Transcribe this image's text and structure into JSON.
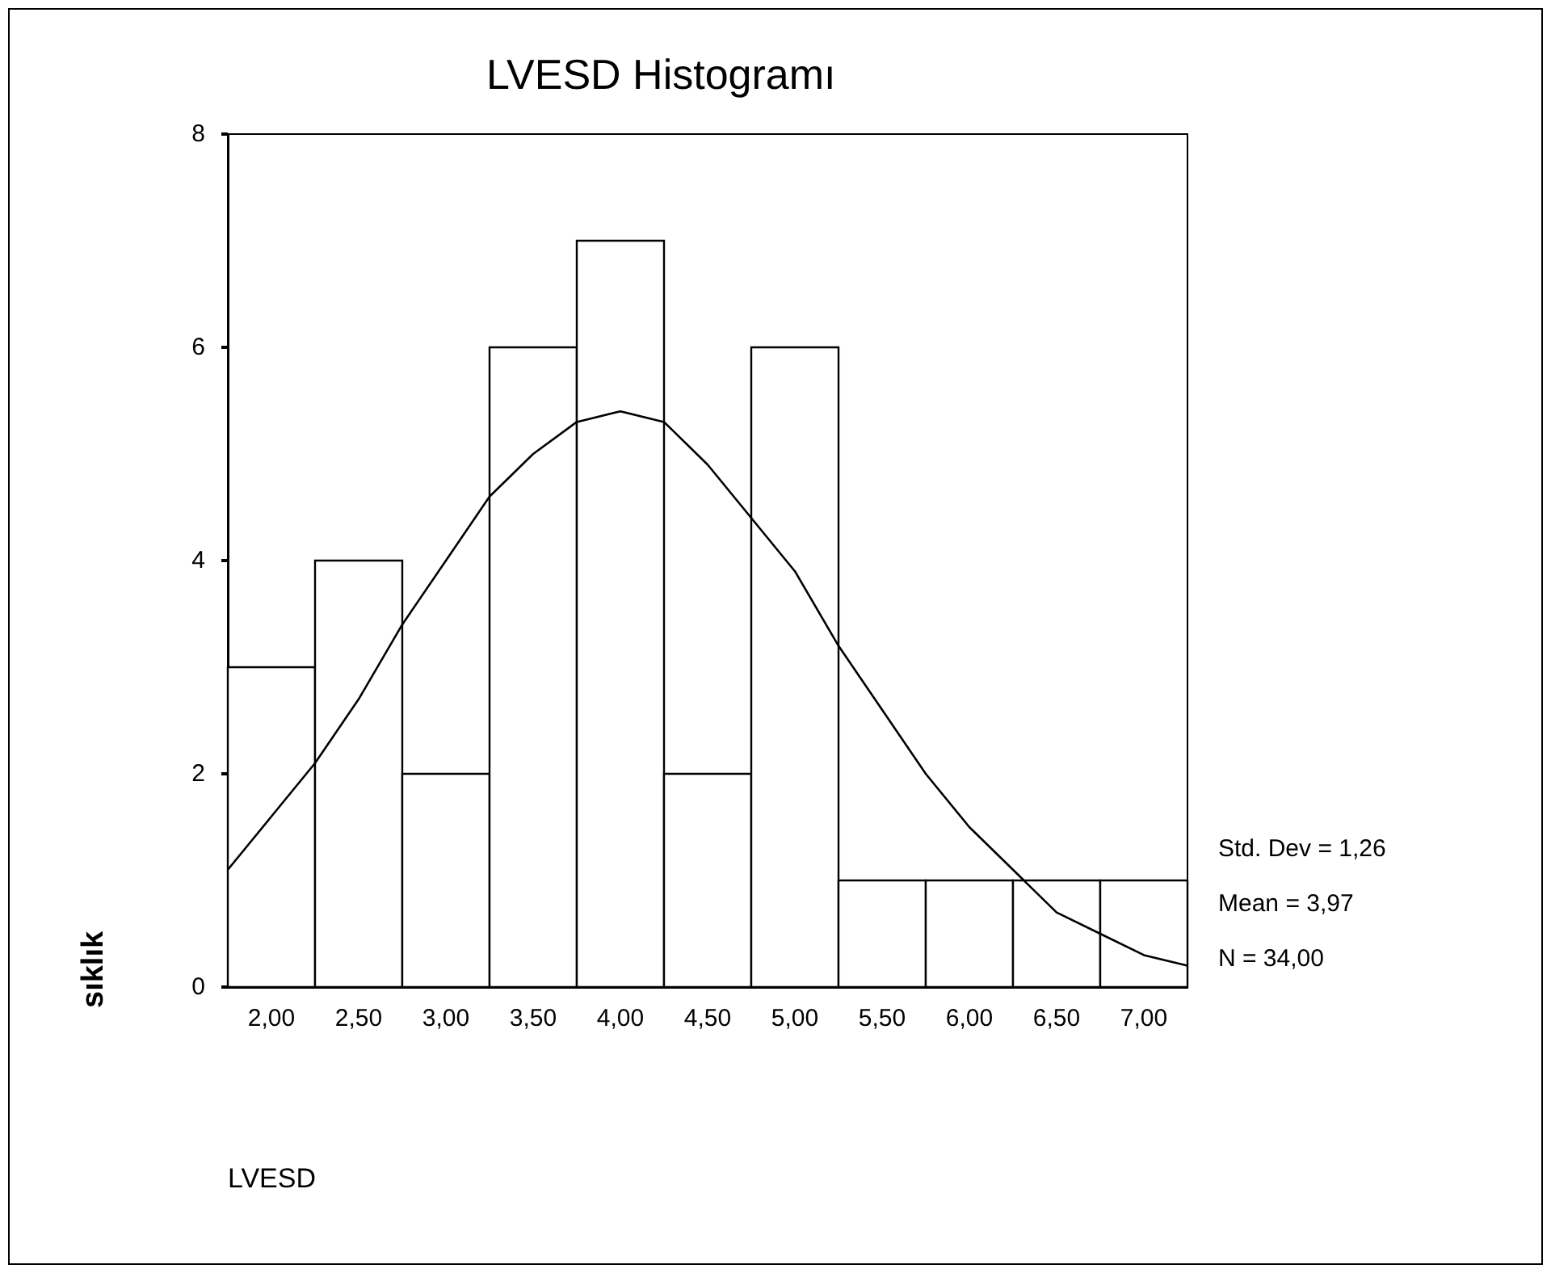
{
  "chart_data": {
    "type": "histogram",
    "title": "LVESD Histogramı",
    "xlabel": "LVESD",
    "ylabel": "sıklık",
    "bins": [
      1.75,
      2.25,
      2.75,
      3.25,
      3.75,
      4.25,
      4.75,
      5.25,
      5.75,
      6.25,
      6.75,
      7.25
    ],
    "values": [
      3,
      4,
      2,
      6,
      7,
      2,
      6,
      1,
      1,
      1,
      1
    ],
    "color": "#ffffff",
    "series": [
      {
        "type": "line",
        "color": "#000000",
        "x": [
          1.75,
          2,
          2.25,
          2.5,
          2.75,
          3,
          3.25,
          3.5,
          3.75,
          4,
          4.25,
          4.5,
          4.75,
          5,
          5.25,
          5.5,
          5.75,
          6,
          6.25,
          6.5,
          6.75,
          7,
          7.25
        ],
        "values": [
          1.1,
          1.6,
          2.1,
          2.7,
          3.4,
          4.0,
          4.6,
          5.0,
          5.3,
          5.4,
          5.3,
          4.9,
          4.4,
          3.9,
          3.2,
          2.6,
          2.0,
          1.5,
          1.1,
          0.7,
          0.5,
          0.3,
          0.2
        ]
      }
    ],
    "marker": "none",
    "xlim": [
      1.75,
      7.25
    ],
    "ylim": [
      0,
      8
    ],
    "xticks": [
      {
        "value": 2,
        "label": "2,00"
      },
      {
        "value": 2.5,
        "label": "2,50"
      },
      {
        "value": 3,
        "label": "3,00"
      },
      {
        "value": 3.5,
        "label": "3,50"
      },
      {
        "value": 4,
        "label": "4,00"
      },
      {
        "value": 4.5,
        "label": "4,50"
      },
      {
        "value": 5,
        "label": "5,00"
      },
      {
        "value": 5.5,
        "label": "5,50"
      },
      {
        "value": 6,
        "label": "6,00"
      },
      {
        "value": 6.5,
        "label": "6,50"
      },
      {
        "value": 7,
        "label": "7,00"
      }
    ],
    "yticks": [
      0,
      2,
      4,
      6,
      8
    ],
    "grid": false,
    "annotations": [
      "Std. Dev = 1,26",
      "Mean = 3,97",
      "N = 34,00"
    ]
  }
}
